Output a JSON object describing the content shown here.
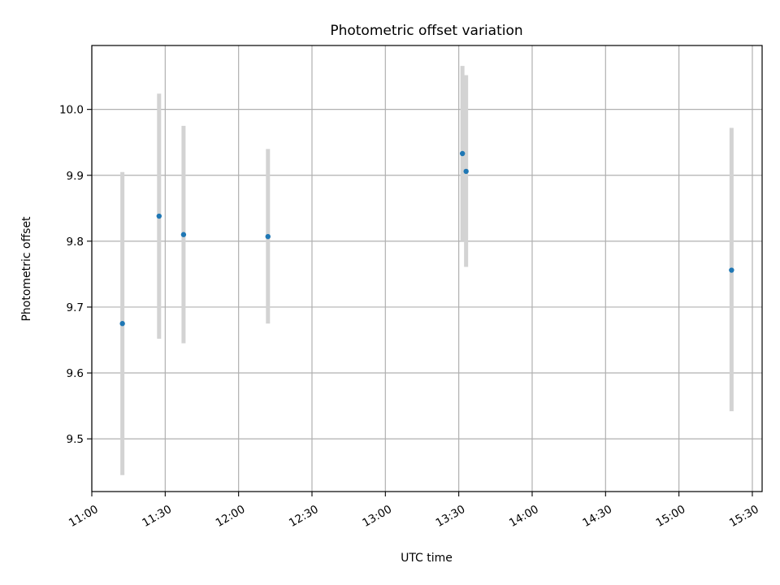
{
  "chart_data": {
    "type": "scatter",
    "title": "Photometric offset variation",
    "xlabel": "UTC time",
    "ylabel": "Photometric offset",
    "xlim": [
      "11:00",
      "15:34"
    ],
    "ylim": [
      9.42,
      10.097
    ],
    "x_ticks": [
      "11:00",
      "11:30",
      "12:00",
      "12:30",
      "13:00",
      "13:30",
      "14:00",
      "14:30",
      "15:00",
      "15:30"
    ],
    "y_ticks": [
      "9.5",
      "9.6",
      "9.7",
      "9.8",
      "9.9",
      "10.0"
    ],
    "grid": true,
    "marker_color": "#1f77b4",
    "errorbar_color": "#d3d3d3",
    "points": [
      {
        "x": "11:12.5",
        "y": 9.675,
        "ylow": 9.445,
        "yhigh": 9.905
      },
      {
        "x": "11:27.5",
        "y": 9.838,
        "ylow": 9.652,
        "yhigh": 10.024
      },
      {
        "x": "11:37.5",
        "y": 9.81,
        "ylow": 9.645,
        "yhigh": 9.975
      },
      {
        "x": "12:12",
        "y": 9.807,
        "ylow": 9.675,
        "yhigh": 9.94
      },
      {
        "x": "13:31.5",
        "y": 9.933,
        "ylow": 9.8,
        "yhigh": 10.066
      },
      {
        "x": "13:33",
        "y": 9.906,
        "ylow": 9.761,
        "yhigh": 10.052
      },
      {
        "x": "15:21.5",
        "y": 9.756,
        "ylow": 9.542,
        "yhigh": 9.972
      }
    ]
  }
}
